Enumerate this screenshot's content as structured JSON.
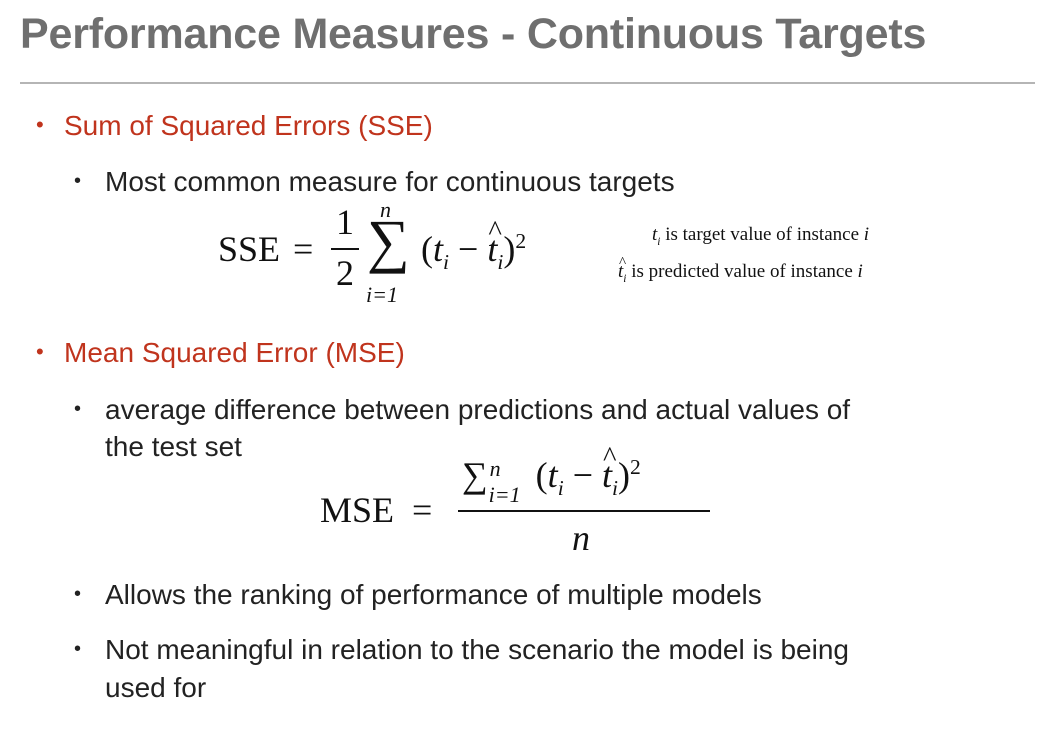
{
  "title": "Performance Measures - Continuous Targets",
  "sections": [
    {
      "heading": "Sum of Squared Errors (SSE)",
      "bullets": [
        "Most common measure for continuous targets"
      ],
      "notes": [
        "is target value of instance",
        "is predicted value of instance"
      ]
    },
    {
      "heading": "Mean Squared Error (MSE)",
      "bullets": [
        "average difference between predictions and actual values of",
        "the test set",
        "Allows the ranking of performance of multiple models",
        "Not meaningful in relation to the scenario the model is being",
        "used for"
      ]
    }
  ],
  "formulas": {
    "sse_lhs": "SSE",
    "mse_lhs": "MSE",
    "eq": "=",
    "one": "1",
    "two": "2",
    "n": "n",
    "i_eq_1": "i=1",
    "sum": "∑",
    "minus": "−",
    "sq": "2",
    "lparen": "(",
    "rparen": ")",
    "t": "t",
    "i": "i",
    "hat": "^"
  },
  "colors": {
    "title": "#6f6f6f",
    "heading": "#c0341d",
    "rule": "#b5b5b5"
  }
}
